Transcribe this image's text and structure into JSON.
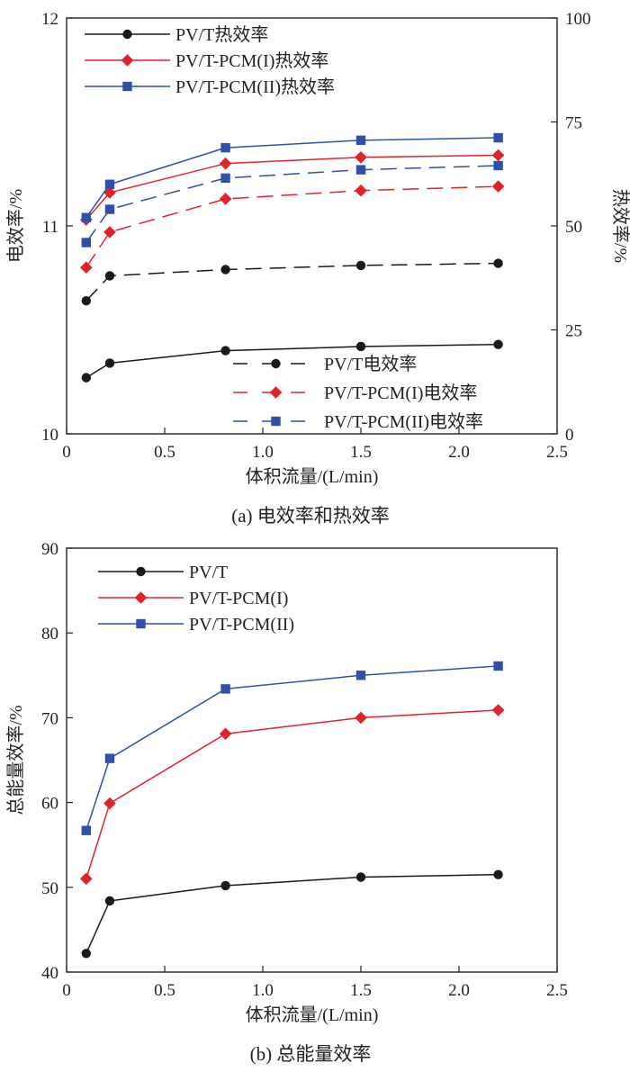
{
  "colors": {
    "black": "#1a1a1a",
    "red": "#e0232b",
    "blue": "#2f4fa8",
    "axis": "#222222"
  },
  "chart_data": [
    {
      "type": "line",
      "caption": "(a) 电效率和热效率",
      "xlabel": "体积流量/(L/min)",
      "ylabel": "电效率/%",
      "y2label": "热效率/%",
      "xlim": [
        0,
        2.5
      ],
      "ylim": [
        10,
        12
      ],
      "y2lim": [
        0,
        100
      ],
      "x_ticks": [
        "0",
        "0.5",
        "1.0",
        "1.5",
        "2.0",
        "2.5"
      ],
      "y_ticks": [
        "10",
        "11",
        "12"
      ],
      "y2_ticks": [
        "0",
        "25",
        "50",
        "75",
        "100"
      ],
      "x": [
        0.1,
        0.22,
        0.81,
        1.5,
        2.2
      ],
      "grid": false,
      "series": [
        {
          "name": "PV/T热效率",
          "axis": "y2",
          "dash": "solid",
          "marker": "circle",
          "color": "black",
          "values": [
            13.5,
            17.0,
            20.0,
            21.0,
            21.5
          ]
        },
        {
          "name": "PV/T-PCM(I)热效率",
          "axis": "y2",
          "dash": "solid",
          "marker": "diamond",
          "color": "red",
          "values": [
            51.5,
            58.0,
            65.0,
            66.5,
            67.0
          ]
        },
        {
          "name": "PV/T-PCM(II)热效率",
          "axis": "y2",
          "dash": "solid",
          "marker": "square",
          "color": "blue",
          "values": [
            52.0,
            60.0,
            68.8,
            70.6,
            71.2
          ]
        },
        {
          "name": "PV/T电效率",
          "axis": "y",
          "dash": "dashed",
          "marker": "circle",
          "color": "black",
          "values": [
            10.64,
            10.76,
            10.79,
            10.81,
            10.82
          ]
        },
        {
          "name": "PV/T-PCM(I)电效率",
          "axis": "y",
          "dash": "dashed",
          "marker": "diamond",
          "color": "red",
          "values": [
            10.8,
            10.97,
            11.13,
            11.17,
            11.19
          ]
        },
        {
          "name": "PV/T-PCM(II)电效率",
          "axis": "y",
          "dash": "dashed",
          "marker": "square",
          "color": "blue",
          "values": [
            10.92,
            11.08,
            11.23,
            11.27,
            11.29
          ]
        }
      ],
      "legend_top_left": [
        "PV/T热效率",
        "PV/T-PCM(I)热效率",
        "PV/T-PCM(II)热效率"
      ],
      "legend_bottom_right": [
        "PV/T电效率",
        "PV/T-PCM(I)电效率",
        "PV/T-PCM(II)电效率"
      ]
    },
    {
      "type": "line",
      "caption": "(b) 总能量效率",
      "xlabel": "体积流量/(L/min)",
      "ylabel": "总能量效率/%",
      "xlim": [
        0,
        2.5
      ],
      "ylim": [
        40,
        90
      ],
      "x_ticks": [
        "0",
        "0.5",
        "1.0",
        "1.5",
        "2.0",
        "2.5"
      ],
      "y_ticks": [
        "40",
        "50",
        "60",
        "70",
        "80",
        "90"
      ],
      "x": [
        0.1,
        0.22,
        0.81,
        1.5,
        2.2
      ],
      "grid": false,
      "series": [
        {
          "name": "PV/T",
          "dash": "solid",
          "marker": "circle",
          "color": "black",
          "values": [
            42.2,
            48.4,
            50.2,
            51.2,
            51.5
          ]
        },
        {
          "name": "PV/T-PCM(I)",
          "dash": "solid",
          "marker": "diamond",
          "color": "red",
          "values": [
            51.0,
            59.9,
            68.1,
            70.0,
            70.9
          ]
        },
        {
          "name": "PV/T-PCM(II)",
          "dash": "solid",
          "marker": "square",
          "color": "blue",
          "values": [
            56.7,
            65.2,
            73.4,
            75.0,
            76.1
          ]
        }
      ],
      "legend_top_left": [
        "PV/T",
        "PV/T-PCM(I)",
        "PV/T-PCM(II)"
      ]
    }
  ]
}
